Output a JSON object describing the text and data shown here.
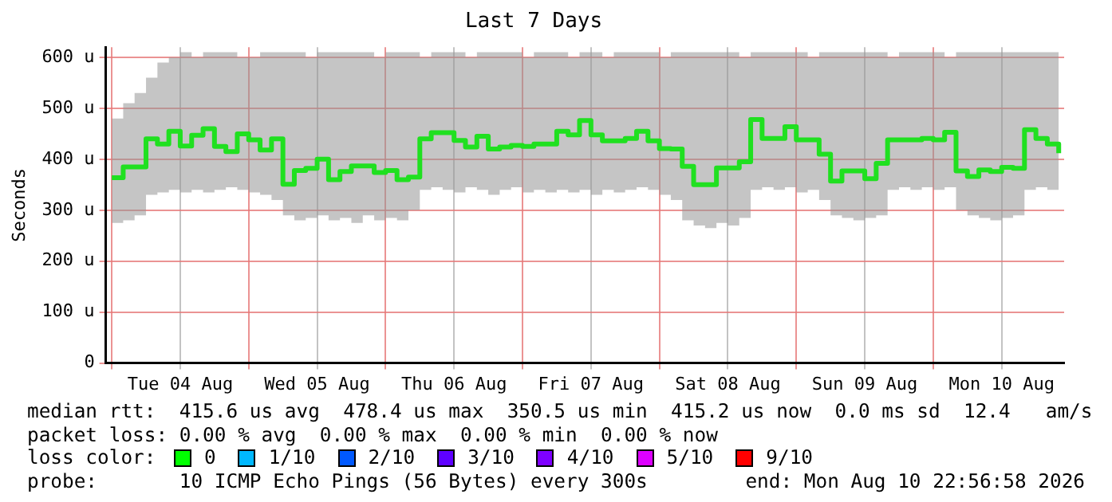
{
  "chart_data": {
    "type": "step",
    "title": "Last 7 Days",
    "ylabel": "Seconds",
    "x": [
      "2026-08-04T00:00",
      "2026-08-04T02:00",
      "2026-08-04T04:00",
      "2026-08-04T06:00",
      "2026-08-04T08:00",
      "2026-08-04T10:00",
      "2026-08-04T12:00",
      "2026-08-04T14:00",
      "2026-08-04T16:00",
      "2026-08-04T18:00",
      "2026-08-04T20:00",
      "2026-08-04T22:00",
      "2026-08-05T00:00",
      "2026-08-05T02:00",
      "2026-08-05T04:00",
      "2026-08-05T06:00",
      "2026-08-05T08:00",
      "2026-08-05T10:00",
      "2026-08-05T12:00",
      "2026-08-05T14:00",
      "2026-08-05T16:00",
      "2026-08-05T18:00",
      "2026-08-05T20:00",
      "2026-08-05T22:00",
      "2026-08-06T00:00",
      "2026-08-06T02:00",
      "2026-08-06T04:00",
      "2026-08-06T06:00",
      "2026-08-06T08:00",
      "2026-08-06T10:00",
      "2026-08-06T12:00",
      "2026-08-06T14:00",
      "2026-08-06T16:00",
      "2026-08-06T18:00",
      "2026-08-06T20:00",
      "2026-08-06T22:00",
      "2026-08-07T00:00",
      "2026-08-07T02:00",
      "2026-08-07T04:00",
      "2026-08-07T06:00",
      "2026-08-07T08:00",
      "2026-08-07T10:00",
      "2026-08-07T12:00",
      "2026-08-07T14:00",
      "2026-08-07T16:00",
      "2026-08-07T18:00",
      "2026-08-07T20:00",
      "2026-08-07T22:00",
      "2026-08-08T00:00",
      "2026-08-08T02:00",
      "2026-08-08T04:00",
      "2026-08-08T06:00",
      "2026-08-08T08:00",
      "2026-08-08T10:00",
      "2026-08-08T12:00",
      "2026-08-08T14:00",
      "2026-08-08T16:00",
      "2026-08-08T18:00",
      "2026-08-08T20:00",
      "2026-08-08T22:00",
      "2026-08-09T00:00",
      "2026-08-09T02:00",
      "2026-08-09T04:00",
      "2026-08-09T06:00",
      "2026-08-09T08:00",
      "2026-08-09T10:00",
      "2026-08-09T12:00",
      "2026-08-09T14:00",
      "2026-08-09T16:00",
      "2026-08-09T18:00",
      "2026-08-09T20:00",
      "2026-08-09T22:00",
      "2026-08-10T00:00",
      "2026-08-10T02:00",
      "2026-08-10T04:00",
      "2026-08-10T06:00",
      "2026-08-10T08:00",
      "2026-08-10T10:00",
      "2026-08-10T12:00",
      "2026-08-10T14:00",
      "2026-08-10T16:00",
      "2026-08-10T18:00",
      "2026-08-10T20:00",
      "2026-08-10T22:00"
    ],
    "series": [
      {
        "color": "#20e020",
        "values": [
          364,
          385,
          385,
          440,
          430,
          455,
          426,
          447,
          460,
          425,
          415,
          450,
          438,
          418,
          440,
          351,
          378,
          382,
          400,
          360,
          376,
          387,
          387,
          374,
          378,
          360,
          365,
          440,
          452,
          452,
          437,
          424,
          445,
          420,
          424,
          427,
          425,
          430,
          430,
          455,
          448,
          476,
          448,
          436,
          436,
          441,
          455,
          436,
          421,
          420,
          386,
          350,
          350,
          383,
          383,
          395,
          478,
          441,
          441,
          464,
          438,
          438,
          410,
          357,
          377,
          377,
          362,
          392,
          438,
          438,
          438,
          441,
          438,
          453,
          377,
          366,
          379,
          376,
          384,
          382,
          458,
          441,
          430,
          412
        ],
        "lower": [
          275,
          280,
          290,
          330,
          335,
          340,
          335,
          340,
          335,
          340,
          345,
          340,
          335,
          330,
          320,
          290,
          280,
          285,
          290,
          280,
          285,
          275,
          290,
          280,
          285,
          280,
          300,
          340,
          345,
          340,
          335,
          345,
          340,
          330,
          340,
          345,
          335,
          340,
          335,
          340,
          335,
          340,
          330,
          340,
          335,
          340,
          345,
          340,
          330,
          320,
          280,
          270,
          265,
          275,
          270,
          285,
          340,
          345,
          340,
          345,
          335,
          340,
          320,
          290,
          285,
          280,
          285,
          290,
          340,
          345,
          340,
          345,
          340,
          345,
          300,
          290,
          285,
          280,
          285,
          290,
          340,
          345,
          340,
          335
        ],
        "upper": [
          480,
          510,
          530,
          560,
          590,
          600,
          610,
          600,
          610,
          610,
          610,
          600,
          600,
          610,
          610,
          610,
          610,
          600,
          610,
          610,
          610,
          610,
          610,
          600,
          610,
          610,
          610,
          600,
          610,
          610,
          610,
          600,
          610,
          610,
          610,
          610,
          600,
          610,
          610,
          610,
          600,
          610,
          610,
          600,
          610,
          610,
          610,
          610,
          600,
          610,
          610,
          610,
          610,
          610,
          610,
          600,
          610,
          610,
          610,
          610,
          610,
          600,
          610,
          610,
          610,
          610,
          610,
          610,
          600,
          610,
          610,
          610,
          610,
          600,
          610,
          610,
          610,
          610,
          610,
          610,
          610,
          610,
          610,
          610
        ]
      }
    ],
    "xlim": [
      "2026-08-03T22:57",
      "2026-08-10T22:57"
    ],
    "xticks": [
      {
        "value": "2026-08-04T00:00",
        "label": null
      },
      {
        "value": "2026-08-04T12:00",
        "label": "Tue 04 Aug"
      },
      {
        "value": "2026-08-05T00:00",
        "label": null
      },
      {
        "value": "2026-08-05T12:00",
        "label": "Wed 05 Aug"
      },
      {
        "value": "2026-08-06T00:00",
        "label": null
      },
      {
        "value": "2026-08-06T12:00",
        "label": "Thu 06 Aug"
      },
      {
        "value": "2026-08-07T00:00",
        "label": null
      },
      {
        "value": "2026-08-07T12:00",
        "label": "Fri 07 Aug"
      },
      {
        "value": "2026-08-08T00:00",
        "label": null
      },
      {
        "value": "2026-08-08T12:00",
        "label": "Sat 08 Aug"
      },
      {
        "value": "2026-08-09T00:00",
        "label": null
      },
      {
        "value": "2026-08-09T12:00",
        "label": "Sun 09 Aug"
      },
      {
        "value": "2026-08-10T00:00",
        "label": null
      },
      {
        "value": "2026-08-10T12:00",
        "label": "Mon 10 Aug"
      }
    ],
    "ylim": [
      0,
      620
    ],
    "yticks": [
      0,
      {
        "value": 100,
        "label": "100 u"
      },
      {
        "value": 200,
        "label": "200 u"
      },
      {
        "value": 300,
        "label": "300 u"
      },
      {
        "value": 400,
        "label": "400 u"
      },
      {
        "value": 500,
        "label": "500 u"
      },
      {
        "value": 600,
        "label": "600 u"
      }
    ],
    "grid": true,
    "annotations": [
      "median rtt:  415.6 us avg  478.4 us max  350.5 us min  415.2 us now  0.0 ms sd  12.4   am/s",
      "packet loss: 0.00 % avg  0.00 % max  0.00 % min  0.00 % now",
      "loss color:",
      "0",
      "1/10",
      "2/10",
      "3/10",
      "4/10",
      "5/10",
      "9/10",
      "probe:       10 ICMP Echo Pings (56 Bytes) every 300s",
      "end: Mon Aug 10 22:56:58 2026"
    ]
  }
}
